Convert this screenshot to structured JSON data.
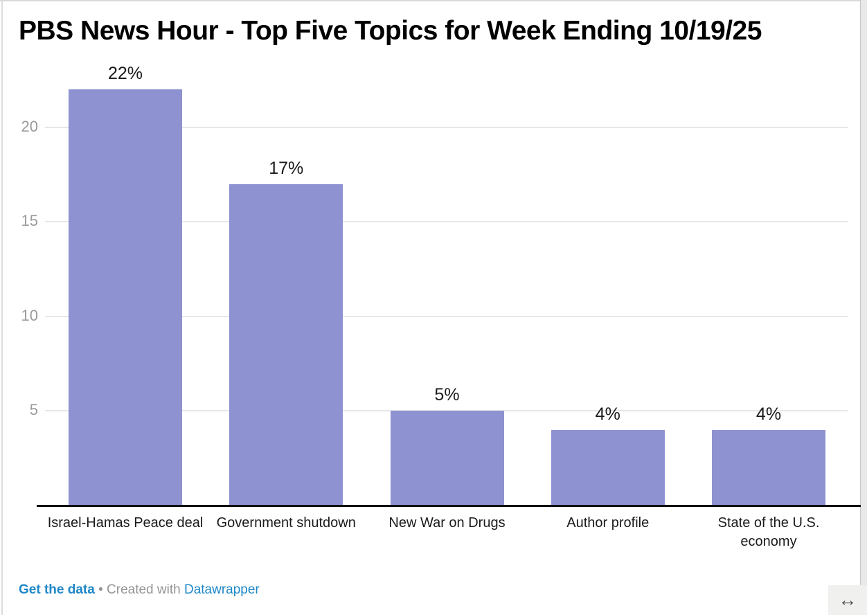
{
  "chart": {
    "title": "PBS News Hour - Top Five Topics for Week Ending 10/19/25"
  },
  "chart_data": {
    "type": "bar",
    "title": "PBS News Hour - Top Five Topics for Week Ending 10/19/25",
    "categories": [
      "Israel-Hamas Peace deal",
      "Government shutdown",
      "New War on Drugs",
      "Author profile",
      "State of the U.S. economy"
    ],
    "values": [
      22,
      17,
      5,
      4,
      4
    ],
    "value_labels": [
      "22%",
      "17%",
      "5%",
      "4%",
      "4%"
    ],
    "xlabel": "",
    "ylabel": "",
    "y_ticks": [
      5,
      10,
      15,
      20
    ],
    "ylim": [
      0,
      22
    ],
    "grid": true,
    "legend": "none",
    "bar_color": "#8e92d0",
    "gridline_color": "#e7e7e7",
    "tick_label_color": "#9b9b9b",
    "axis_line_color": "#111111"
  },
  "footer": {
    "get_data_label": "Get the data",
    "separator": "•",
    "created_with": "Created with",
    "brand_link": "Datawrapper",
    "link_color": "#1e87c7",
    "text_color": "#949494"
  },
  "controls": {
    "resize_icon": "↔"
  }
}
